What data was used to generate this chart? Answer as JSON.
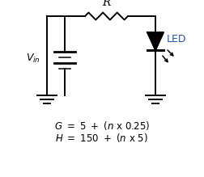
{
  "background_color": "#ffffff",
  "formula_line1": "G  =  5  +  (n x 0.25)",
  "formula_line2": "H = 150 + (n x 5)",
  "formula_fontsize": 8.5,
  "text_color": "#000000",
  "label_R": "R",
  "label_Vin_main": "V",
  "label_Vin_sub": "in",
  "label_LED": "LED",
  "led_blue": "#2255aa",
  "circuit_lw": 1.4
}
